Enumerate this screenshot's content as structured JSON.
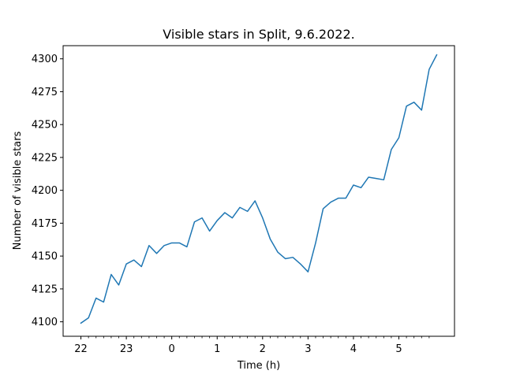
{
  "chart_data": {
    "type": "line",
    "title": "Visible stars in Split, 9.6.2022.",
    "xlabel": "Time (h)",
    "ylabel": "Number of visible stars",
    "x_tick_labels": [
      "22",
      "23",
      "0",
      "1",
      "2",
      "3",
      "4",
      "5"
    ],
    "y_ticks": [
      4100,
      4125,
      4150,
      4175,
      4200,
      4225,
      4250,
      4275,
      4300
    ],
    "ylim": [
      4089,
      4310
    ],
    "grid": false,
    "series_color": "#1f77b4",
    "series": [
      {
        "x": [
          22.0,
          22.167,
          22.333,
          22.5,
          22.667,
          22.833,
          23.0,
          23.167,
          23.333,
          23.5,
          23.667,
          23.833,
          24.0,
          24.167,
          24.333,
          24.5,
          24.667,
          24.833,
          25.0,
          25.167,
          25.333,
          25.5,
          25.667,
          25.833,
          26.0,
          26.167,
          26.333,
          26.5,
          26.667,
          26.833,
          27.0,
          27.167,
          27.333,
          27.5,
          27.667,
          27.833,
          28.0,
          28.167,
          28.333,
          28.5,
          28.667,
          28.833,
          29.0,
          29.167,
          29.333,
          29.5,
          29.667,
          29.833
        ],
        "y": [
          4099,
          4103,
          4118,
          4115,
          4136,
          4128,
          4144,
          4147,
          4142,
          4158,
          4152,
          4158,
          4160,
          4160,
          4157,
          4176,
          4179,
          4169,
          4177,
          4183,
          4179,
          4187,
          4184,
          4192,
          4179,
          4163,
          4153,
          4148,
          4149,
          4144,
          4138,
          4160,
          4186,
          4191,
          4194,
          4194,
          4204,
          4202,
          4210,
          4209,
          4208,
          4231,
          4240,
          4264,
          4267,
          4261,
          4292,
          4303
        ]
      }
    ]
  }
}
